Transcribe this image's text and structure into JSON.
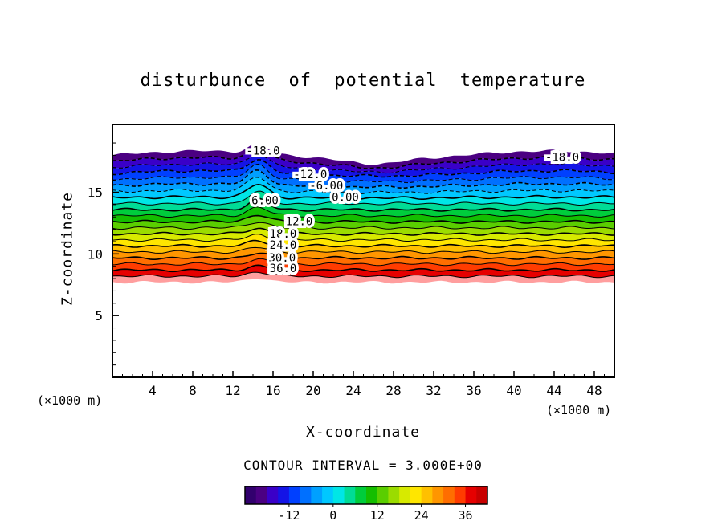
{
  "labels": {
    "title": "disturbunce of potential temperature",
    "y_axis": "Z-coordinate",
    "x_axis": "X-coordinate",
    "unit_left": "(×1000 m)",
    "unit_right": "(×1000 m)",
    "contour_interval": "CONTOUR INTERVAL = 3.000E+00"
  },
  "chart_data": {
    "type": "contour",
    "title": "disturbunce of potential temperature",
    "xlabel": "X-coordinate",
    "ylabel": "Z-coordinate",
    "axis_units": "(×1000 m)",
    "x_range": [
      0,
      50
    ],
    "y_range": [
      0,
      20.5
    ],
    "x_ticks": [
      4,
      8,
      12,
      16,
      20,
      24,
      28,
      32,
      36,
      40,
      44,
      48
    ],
    "y_ticks": [
      5,
      10,
      15
    ],
    "contour_interval": 3,
    "contour_interval_text": "CONTOUR INTERVAL = 3.000E+00",
    "line_level_min": -18,
    "line_level_max": 39,
    "labeled_levels": [
      -18,
      -12,
      -6,
      0,
      6,
      12,
      18,
      24,
      30,
      36
    ],
    "negative_style": "dashed",
    "positive_style": "solid",
    "band_colors": [
      "#4b0082",
      "#3a00c8",
      "#1414e6",
      "#0040ff",
      "#0070ff",
      "#00a0ff",
      "#00c8ff",
      "#00e6e6",
      "#00dc96",
      "#00cd3c",
      "#14be00",
      "#5ace00",
      "#9bdc00",
      "#d7ea00",
      "#ffe600",
      "#ffc000",
      "#ff9600",
      "#ff6e00",
      "#ff3c00",
      "#e60000",
      "#ff9e9e"
    ],
    "field_model": {
      "description": "height z (km) of contour boundary k (0 = top edge of colored data, 21 = bottom edge) as a function of x; band k fills between boundaries k and k+1",
      "z_top": 18.0,
      "dz": 0.49,
      "n_boundaries": 22,
      "ridge": {
        "x": 14.5,
        "width": 1.4,
        "amp_base": 0.35,
        "amp_peak": 0.8,
        "amp_center_k": 5,
        "amp_width_k": 5.5
      },
      "top_wave": {
        "amp": 0.35,
        "freq": 0.18,
        "decay_k": 8
      },
      "notch": {
        "x": 26,
        "width": 3.5,
        "amp": 0.35,
        "n_k": 3
      },
      "wiggles": [
        {
          "amp": 0.07,
          "freq": 1.9,
          "kphase": 1.3
        },
        {
          "amp": 0.05,
          "freq": 0.9,
          "kphase": -0.7
        }
      ]
    },
    "contour_labels": [
      {
        "text": "-18.0",
        "level": -18,
        "x": 15.0
      },
      {
        "text": "-18.0",
        "level": -18,
        "x": 44.8
      },
      {
        "text": "-12.0",
        "level": -12,
        "x": 19.7
      },
      {
        "text": "-6.00",
        "level": -6,
        "x": 21.3
      },
      {
        "text": "6.00",
        "level": 6,
        "x": 15.2
      },
      {
        "text": "0.00",
        "level": 0,
        "x": 23.2
      },
      {
        "text": "12.0",
        "level": 12,
        "x": 18.6
      },
      {
        "text": "18.0",
        "level": 18,
        "x": 17.0
      },
      {
        "text": "24.0",
        "level": 24,
        "x": 17.0
      },
      {
        "text": "30.0",
        "level": 30,
        "x": 16.9
      },
      {
        "text": "36.0",
        "level": 36,
        "x": 17.0
      }
    ],
    "colorbar": {
      "value_range": [
        -24,
        42
      ],
      "cells": 22,
      "colors": [
        "#32006e",
        "#4b0082",
        "#3a00c8",
        "#1414e6",
        "#0040ff",
        "#0070ff",
        "#00a0ff",
        "#00c8ff",
        "#00e6e6",
        "#00dc96",
        "#00cd3c",
        "#14be00",
        "#5ace00",
        "#9bdc00",
        "#d7ea00",
        "#ffe600",
        "#ffc000",
        "#ff9600",
        "#ff6e00",
        "#ff3c00",
        "#e60000",
        "#c80000"
      ],
      "tick_values": [
        -12,
        0,
        12,
        24,
        36
      ],
      "tick_labels": [
        "-12",
        "0",
        "12",
        "24",
        "36"
      ]
    }
  }
}
